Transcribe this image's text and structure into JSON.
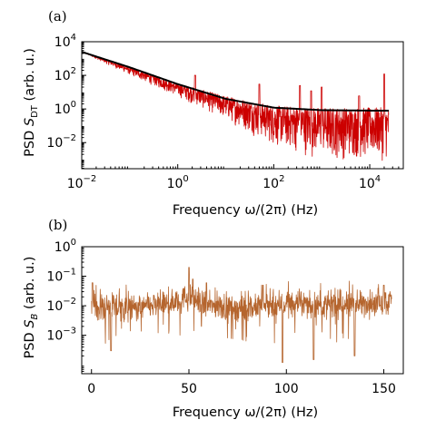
{
  "colors": {
    "raw_psd": "#cc0000",
    "fit": "#000000",
    "b_psd": "#b5652e",
    "axes": "#000000"
  },
  "chart_data": [
    {
      "type": "line",
      "panel_label": "(a)",
      "xlabel": "Frequency ω/(2π) (Hz)",
      "ylabel": "PSD S_DT (arb. u.)",
      "xscale": "log",
      "yscale": "log",
      "xlim": [
        0.01,
        50000
      ],
      "ylim": [
        0.00028,
        10000
      ],
      "x_ticks": [
        {
          "value": 0.01,
          "base": "10",
          "exp": "−2"
        },
        {
          "value": 1,
          "base": "10",
          "exp": "0"
        },
        {
          "value": 100,
          "base": "10",
          "exp": "2"
        },
        {
          "value": 10000,
          "base": "10",
          "exp": "4"
        }
      ],
      "y_ticks": [
        {
          "value": 0.01,
          "base": "10",
          "exp": "−2"
        },
        {
          "value": 1,
          "base": "10",
          "exp": "0"
        },
        {
          "value": 100,
          "base": "10",
          "exp": "2"
        },
        {
          "value": 10000,
          "base": "10",
          "exp": "4"
        }
      ],
      "series": [
        {
          "style": "noisy-psd",
          "color_key": "raw_psd",
          "x_range": [
            0.01,
            25000
          ],
          "trend": {
            "x": [
              0.01,
              0.1,
              1,
              10,
              100,
              1000,
              10000,
              25000
            ],
            "y": [
              2500,
              300,
              30,
              5,
              1.2,
              0.85,
              0.85,
              0.85
            ]
          },
          "lower_envelope": {
            "x": [
              0.01,
              0.1,
              1,
              10,
              100,
              1000,
              10000,
              25000
            ],
            "y": [
              2500,
              100,
              5,
              0.2,
              0.005,
              0.0008,
              0.0007,
              0.0007
            ]
          },
          "spikes": [
            {
              "x": 0.017,
              "y": 1200
            },
            {
              "x": 0.025,
              "y": 500
            },
            {
              "x": 2.3,
              "y": 100
            },
            {
              "x": 50,
              "y": 30
            },
            {
              "x": 350,
              "y": 25
            },
            {
              "x": 600,
              "y": 12
            },
            {
              "x": 1000,
              "y": 20
            },
            {
              "x": 6000,
              "y": 6
            },
            {
              "x": 20000,
              "y": 120
            }
          ]
        },
        {
          "style": "fit",
          "color_key": "fit",
          "x": [
            0.01,
            0.1,
            1,
            10,
            100,
            1000,
            10000,
            25000
          ],
          "y": [
            2500,
            300,
            30,
            4,
            1.2,
            0.85,
            0.8,
            0.8
          ]
        }
      ]
    },
    {
      "type": "line",
      "panel_label": "(b)",
      "xlabel": "Frequency ω/(2π) (Hz)",
      "ylabel": "PSD S_B (arb. u.)",
      "xscale": "linear",
      "yscale": "log",
      "xlim": [
        -5,
        160
      ],
      "ylim": [
        5e-05,
        1
      ],
      "x_ticks": [
        {
          "value": 0,
          "label": "0"
        },
        {
          "value": 50,
          "label": "50"
        },
        {
          "value": 100,
          "label": "100"
        },
        {
          "value": 150,
          "label": "150"
        }
      ],
      "y_ticks": [
        {
          "value": 0.001,
          "base": "10",
          "exp": "−3"
        },
        {
          "value": 0.01,
          "base": "10",
          "exp": "−2"
        },
        {
          "value": 0.1,
          "base": "10",
          "exp": "−1"
        },
        {
          "value": 1,
          "base": "10",
          "exp": "0"
        }
      ],
      "series": [
        {
          "style": "noisy-psd",
          "color_key": "b_psd",
          "x_range": [
            0,
            154
          ],
          "trend": {
            "x": [
              0,
              20,
              40,
              50,
              60,
              80,
              100,
              120,
              140,
              154
            ],
            "y": [
              0.01,
              0.008,
              0.012,
              0.02,
              0.01,
              0.008,
              0.012,
              0.01,
              0.012,
              0.015
            ]
          },
          "spikes": [
            {
              "x": 0.5,
              "y": 0.06
            },
            {
              "x": 50,
              "y": 0.2
            },
            {
              "x": 52,
              "y": 0.08
            },
            {
              "x": 59,
              "y": 0.06
            },
            {
              "x": 88,
              "y": 0.05
            },
            {
              "x": 150,
              "y": 0.05
            }
          ],
          "dips": [
            {
              "x": 10,
              "y": 0.0003
            },
            {
              "x": 98,
              "y": 0.00012
            },
            {
              "x": 114,
              "y": 0.00015
            },
            {
              "x": 135,
              "y": 0.0002
            }
          ]
        }
      ]
    }
  ]
}
